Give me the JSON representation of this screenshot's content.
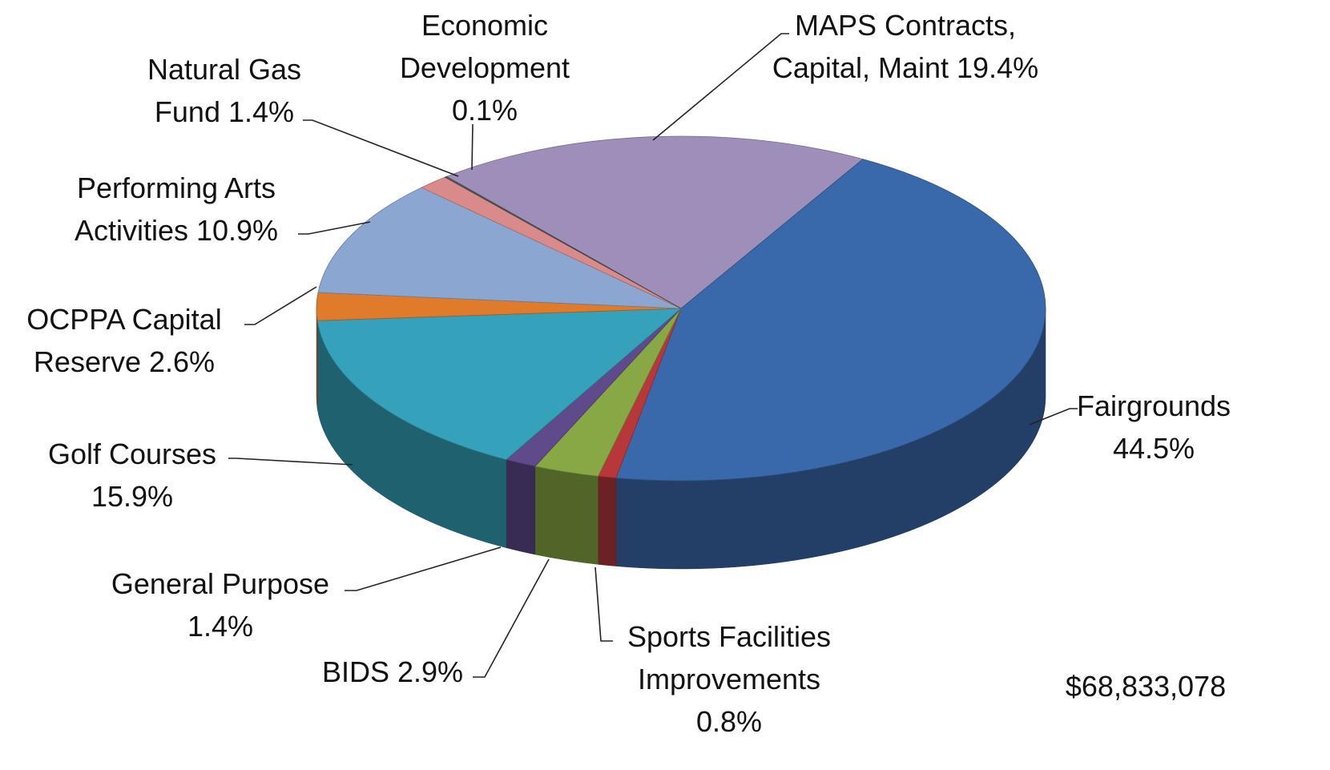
{
  "chart_data": {
    "type": "pie",
    "categories": [
      "MAPS Contracts, Capital, Maint",
      "Fairgrounds",
      "Sports Facilities Improvements",
      "BIDS",
      "General Purpose",
      "Golf Courses",
      "OCPPA Capital Reserve",
      "Performing Arts Activities",
      "Natural Gas Fund",
      "Economic Development"
    ],
    "values": [
      19.4,
      44.5,
      0.8,
      2.9,
      1.4,
      15.9,
      2.6,
      10.9,
      1.4,
      0.1
    ],
    "value_labels": [
      "19.4%",
      "44.5%",
      "0.8%",
      "2.9%",
      "1.4%",
      "15.9%",
      "2.6%",
      "10.9%",
      "1.4%",
      "0.1%"
    ],
    "colors": [
      "#9d8fba",
      "#3a69ab",
      "#b8373a",
      "#88a845",
      "#5f4a8c",
      "#36a1bb",
      "#e07b2b",
      "#8ba6d1",
      "#d98b8b",
      "#5a5a5a"
    ],
    "annotation": "$68,833,078"
  }
}
